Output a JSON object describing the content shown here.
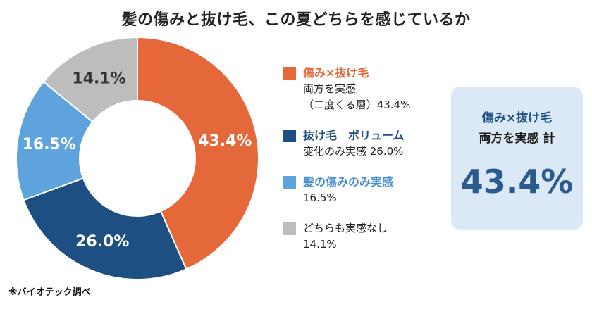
{
  "chart_data": {
    "type": "pie",
    "title": "髪の傷みと抜け毛、この夏どちらを感じているか",
    "categories": [
      "傷み×抜け毛 両方を実感（二度くる層）",
      "抜け毛 ボリューム変化のみ実感",
      "髪の傷みのみ実感",
      "どちらも実感なし"
    ],
    "values": [
      43.4,
      26.0,
      16.5,
      14.1
    ],
    "slice_labels": [
      "43.4%",
      "26.0%",
      "16.5%",
      "14.1%"
    ],
    "colors": [
      "#e5683a",
      "#1d4f82",
      "#5fa3dc",
      "#bdbdbd"
    ],
    "label_colors": [
      "#ffffff",
      "#ffffff",
      "#ffffff",
      "#333333"
    ],
    "donut": true,
    "legend_position": "right"
  },
  "legend": [
    {
      "title": "傷み×抜け毛",
      "lines": [
        "両方を実感",
        "（二度くる層）43.4%"
      ],
      "title_color": "#e5683a"
    },
    {
      "title": "抜け毛　ボリューム",
      "lines": [
        "変化のみ実感 26.0%"
      ],
      "title_color": "#1d4f82"
    },
    {
      "title": "髪の傷みのみ実感",
      "lines": [
        "16.5%"
      ],
      "title_color": "#4a90d0"
    },
    {
      "title": "",
      "lines": [
        "どちらも実感なし",
        "14.1%"
      ],
      "title_color": "#222222"
    }
  ],
  "summary": {
    "line1": "傷み×抜け毛",
    "line2": "両方を実感 計",
    "value": "43.4%"
  },
  "source": "※バイオテック調べ"
}
